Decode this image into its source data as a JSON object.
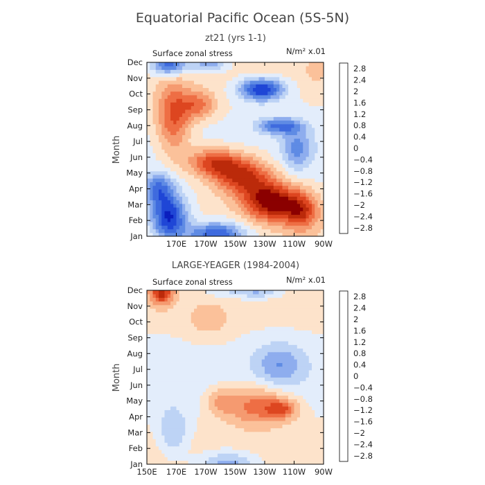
{
  "main_title": "Equatorial Pacific Ocean (5S-5N)",
  "chart_data": [
    {
      "type": "heatmap",
      "title": "zt21 (yrs 1-1)",
      "subtitle": "Surface zonal stress",
      "units": "N/m² x.01",
      "xlabel": "",
      "ylabel": "Month",
      "x_ticks": [
        "170E",
        "170W",
        "150W",
        "130W",
        "110W",
        "90W"
      ],
      "x_tick_lons": [
        170,
        190,
        210,
        230,
        250,
        270
      ],
      "x_range": [
        150,
        270
      ],
      "y_ticks": [
        "Jan",
        "Feb",
        "Mar",
        "Apr",
        "May",
        "Jun",
        "Jul",
        "Aug",
        "Sep",
        "Oct",
        "Nov",
        "Dec"
      ],
      "color_levels": [
        -2.8,
        -2.4,
        -2,
        -1.6,
        -1.2,
        -0.8,
        -0.4,
        0,
        0.4,
        0.8,
        1.2,
        1.6,
        2,
        2.4,
        2.8
      ],
      "features": [
        {
          "lon": 165,
          "month": 1.2,
          "value": -2.6,
          "wlon": 12,
          "wmon": 1.4
        },
        {
          "lon": 197,
          "month": 0.1,
          "value": -2.2,
          "wlon": 20,
          "wmon": 0.8
        },
        {
          "lon": 158,
          "month": 3.0,
          "value": -1.6,
          "wlon": 10,
          "wmon": 1.0
        },
        {
          "lon": 234,
          "month": 2.2,
          "value": 2.6,
          "wlon": 18,
          "wmon": 1.2
        },
        {
          "lon": 255,
          "month": 1.6,
          "value": 1.8,
          "wlon": 12,
          "wmon": 1.2
        },
        {
          "lon": 215,
          "month": 3.8,
          "value": 2.1,
          "wlon": 20,
          "wmon": 1.2
        },
        {
          "lon": 195,
          "month": 4.7,
          "value": 1.8,
          "wlon": 18,
          "wmon": 0.9
        },
        {
          "lon": 168,
          "month": 7.5,
          "value": 1.7,
          "wlon": 12,
          "wmon": 2.3
        },
        {
          "lon": 185,
          "month": 8.3,
          "value": 1.3,
          "wlon": 12,
          "wmon": 0.9
        },
        {
          "lon": 228,
          "month": 9.3,
          "value": -2.5,
          "wlon": 15,
          "wmon": 0.7
        },
        {
          "lon": 240,
          "month": 7.0,
          "value": -1.7,
          "wlon": 14,
          "wmon": 0.5
        },
        {
          "lon": 252,
          "month": 5.6,
          "value": -1.2,
          "wlon": 10,
          "wmon": 1.3
        },
        {
          "lon": 165,
          "month": 10.9,
          "value": -2.1,
          "wlon": 12,
          "wmon": 0.7
        },
        {
          "lon": 192,
          "month": 10.9,
          "value": -1.2,
          "wlon": 12,
          "wmon": 0.5
        },
        {
          "lon": 265,
          "month": 10.4,
          "value": 0.4,
          "wlon": 8,
          "wmon": 0.8
        }
      ]
    },
    {
      "type": "heatmap",
      "title": "LARGE-YEAGER (1984-2004)",
      "subtitle": "Surface zonal stress",
      "units": "N/m² x.01",
      "xlabel": "",
      "ylabel": "Month",
      "x_ticks": [
        "150E",
        "170E",
        "170W",
        "150W",
        "130W",
        "110W",
        "90W"
      ],
      "x_tick_lons": [
        150,
        170,
        190,
        210,
        230,
        250,
        270
      ],
      "x_range": [
        150,
        270
      ],
      "y_ticks": [
        "Jan",
        "Feb",
        "Mar",
        "Apr",
        "May",
        "Jun",
        "Jul",
        "Aug",
        "Sep",
        "Oct",
        "Nov",
        "Dec"
      ],
      "color_levels": [
        -2.8,
        -2.4,
        -2,
        -1.6,
        -1.2,
        -0.8,
        -0.4,
        0,
        0.4,
        0.8,
        1.2,
        1.6,
        2,
        2.4,
        2.8
      ],
      "features": [
        {
          "lon": 160,
          "month": 10.9,
          "value": 2.0,
          "wlon": 8,
          "wmon": 0.8
        },
        {
          "lon": 225,
          "month": 3.7,
          "value": 1.5,
          "wlon": 22,
          "wmon": 1.3
        },
        {
          "lon": 242,
          "month": 3.5,
          "value": 1.2,
          "wlon": 10,
          "wmon": 0.6
        },
        {
          "lon": 200,
          "month": 4.0,
          "value": 0.8,
          "wlon": 10,
          "wmon": 0.9
        },
        {
          "lon": 205,
          "month": 0.0,
          "value": -1.2,
          "wlon": 20,
          "wmon": 0.8
        },
        {
          "lon": 168,
          "month": 2.0,
          "value": -0.9,
          "wlon": 10,
          "wmon": 1.5
        },
        {
          "lon": 240,
          "month": 6.3,
          "value": -1.0,
          "wlon": 16,
          "wmon": 1.4
        },
        {
          "lon": 225,
          "month": 11.0,
          "value": -1.1,
          "wlon": 16,
          "wmon": 0.5
        },
        {
          "lon": 200,
          "month": 11.0,
          "value": -0.5,
          "wlon": 15,
          "wmon": 0.5
        },
        {
          "lon": 192,
          "month": 9.0,
          "value": 0.5,
          "wlon": 15,
          "wmon": 1.2
        }
      ]
    }
  ]
}
